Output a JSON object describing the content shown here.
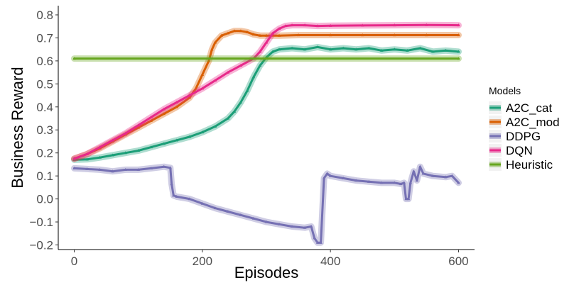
{
  "chart_data": {
    "type": "line",
    "xlabel": "Episodes",
    "ylabel": "Business Reward",
    "xlim": [
      -25,
      625
    ],
    "ylim": [
      -0.22,
      0.84
    ],
    "xticks": [
      0,
      200,
      400,
      600
    ],
    "xtick_labels": [
      "0",
      "200",
      "400",
      "600"
    ],
    "yticks": [
      -0.2,
      -0.1,
      0.0,
      0.1,
      0.2,
      0.3,
      0.4,
      0.5,
      0.6,
      0.7,
      0.8
    ],
    "ytick_labels": [
      "−0.2",
      "−0.1",
      "0.0",
      "0.1",
      "0.2",
      "0.3",
      "0.4",
      "0.5",
      "0.6",
      "0.7",
      "0.8"
    ],
    "grid": false,
    "legend": {
      "title": "Models",
      "position": "right",
      "entries": [
        "A2C_cat",
        "A2C_mod",
        "DDPG",
        "DQN",
        "Heuristic"
      ]
    },
    "series": [
      {
        "name": "A2C_cat",
        "color": "#1b9e77",
        "points": [
          [
            0,
            0.17
          ],
          [
            20,
            0.172
          ],
          [
            40,
            0.18
          ],
          [
            60,
            0.19
          ],
          [
            80,
            0.2
          ],
          [
            100,
            0.21
          ],
          [
            120,
            0.225
          ],
          [
            140,
            0.24
          ],
          [
            160,
            0.255
          ],
          [
            180,
            0.27
          ],
          [
            200,
            0.29
          ],
          [
            220,
            0.315
          ],
          [
            240,
            0.35
          ],
          [
            250,
            0.38
          ],
          [
            260,
            0.42
          ],
          [
            270,
            0.47
          ],
          [
            280,
            0.53
          ],
          [
            290,
            0.58
          ],
          [
            300,
            0.615
          ],
          [
            310,
            0.64
          ],
          [
            320,
            0.65
          ],
          [
            340,
            0.655
          ],
          [
            360,
            0.65
          ],
          [
            380,
            0.66
          ],
          [
            400,
            0.65
          ],
          [
            420,
            0.655
          ],
          [
            440,
            0.65
          ],
          [
            460,
            0.655
          ],
          [
            480,
            0.645
          ],
          [
            500,
            0.65
          ],
          [
            520,
            0.645
          ],
          [
            540,
            0.655
          ],
          [
            560,
            0.64
          ],
          [
            580,
            0.645
          ],
          [
            600,
            0.64
          ]
        ]
      },
      {
        "name": "A2C_mod",
        "color": "#d95f02",
        "points": [
          [
            0,
            0.175
          ],
          [
            20,
            0.195
          ],
          [
            40,
            0.22
          ],
          [
            60,
            0.25
          ],
          [
            80,
            0.28
          ],
          [
            100,
            0.31
          ],
          [
            120,
            0.34
          ],
          [
            140,
            0.37
          ],
          [
            160,
            0.4
          ],
          [
            180,
            0.44
          ],
          [
            190,
            0.48
          ],
          [
            200,
            0.54
          ],
          [
            210,
            0.6
          ],
          [
            215,
            0.65
          ],
          [
            220,
            0.68
          ],
          [
            230,
            0.71
          ],
          [
            240,
            0.72
          ],
          [
            250,
            0.73
          ],
          [
            260,
            0.73
          ],
          [
            270,
            0.725
          ],
          [
            280,
            0.715
          ],
          [
            290,
            0.71
          ],
          [
            300,
            0.71
          ],
          [
            320,
            0.71
          ],
          [
            350,
            0.712
          ],
          [
            400,
            0.712
          ],
          [
            450,
            0.712
          ],
          [
            500,
            0.712
          ],
          [
            550,
            0.712
          ],
          [
            600,
            0.712
          ]
        ]
      },
      {
        "name": "DDPG",
        "color": "#7570b3",
        "points": [
          [
            0,
            0.133
          ],
          [
            20,
            0.13
          ],
          [
            40,
            0.127
          ],
          [
            60,
            0.12
          ],
          [
            80,
            0.127
          ],
          [
            100,
            0.127
          ],
          [
            120,
            0.133
          ],
          [
            140,
            0.14
          ],
          [
            150,
            0.135
          ],
          [
            152,
            0.065
          ],
          [
            155,
            0.015
          ],
          [
            160,
            0.01
          ],
          [
            180,
            0.0
          ],
          [
            200,
            -0.02
          ],
          [
            220,
            -0.04
          ],
          [
            240,
            -0.055
          ],
          [
            260,
            -0.07
          ],
          [
            280,
            -0.085
          ],
          [
            300,
            -0.1
          ],
          [
            320,
            -0.11
          ],
          [
            340,
            -0.12
          ],
          [
            360,
            -0.125
          ],
          [
            370,
            -0.12
          ],
          [
            375,
            -0.17
          ],
          [
            380,
            -0.19
          ],
          [
            385,
            -0.19
          ],
          [
            390,
            0.09
          ],
          [
            395,
            0.11
          ],
          [
            400,
            0.1
          ],
          [
            420,
            0.09
          ],
          [
            440,
            0.08
          ],
          [
            460,
            0.075
          ],
          [
            480,
            0.07
          ],
          [
            500,
            0.07
          ],
          [
            510,
            0.065
          ],
          [
            515,
            0.07
          ],
          [
            518,
            0.0
          ],
          [
            522,
            0.0
          ],
          [
            525,
            0.07
          ],
          [
            530,
            0.12
          ],
          [
            535,
            0.08
          ],
          [
            540,
            0.14
          ],
          [
            545,
            0.11
          ],
          [
            560,
            0.1
          ],
          [
            580,
            0.095
          ],
          [
            590,
            0.1
          ],
          [
            600,
            0.07
          ]
        ]
      },
      {
        "name": "DQN",
        "color": "#e7298a",
        "points": [
          [
            0,
            0.175
          ],
          [
            20,
            0.195
          ],
          [
            40,
            0.225
          ],
          [
            60,
            0.255
          ],
          [
            80,
            0.285
          ],
          [
            100,
            0.32
          ],
          [
            120,
            0.355
          ],
          [
            140,
            0.39
          ],
          [
            160,
            0.42
          ],
          [
            180,
            0.45
          ],
          [
            200,
            0.48
          ],
          [
            220,
            0.515
          ],
          [
            240,
            0.55
          ],
          [
            260,
            0.58
          ],
          [
            280,
            0.61
          ],
          [
            290,
            0.64
          ],
          [
            300,
            0.68
          ],
          [
            310,
            0.72
          ],
          [
            320,
            0.74
          ],
          [
            330,
            0.752
          ],
          [
            340,
            0.755
          ],
          [
            360,
            0.755
          ],
          [
            380,
            0.752
          ],
          [
            400,
            0.753
          ],
          [
            450,
            0.754
          ],
          [
            500,
            0.755
          ],
          [
            550,
            0.756
          ],
          [
            600,
            0.755
          ]
        ]
      },
      {
        "name": "Heuristic",
        "color": "#66a61e",
        "points": [
          [
            0,
            0.61
          ],
          [
            600,
            0.61
          ]
        ]
      }
    ]
  }
}
